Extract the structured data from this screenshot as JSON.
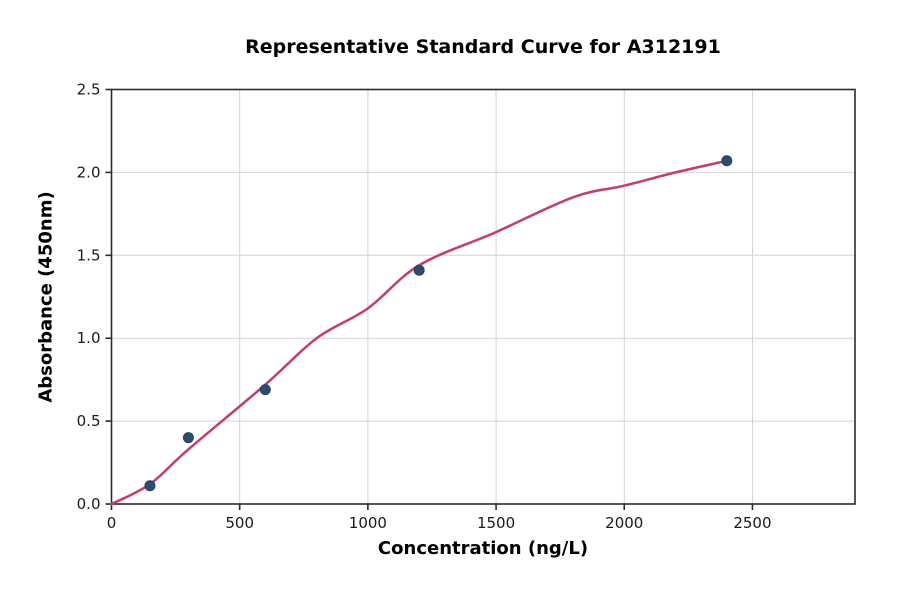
{
  "chart_data": {
    "type": "scatter",
    "title": "Representative Standard Curve for A312191",
    "xlabel": "Concentration (ng/L)",
    "ylabel": "Absorbance (450nm)",
    "xlim": [
      0,
      2900
    ],
    "ylim": [
      0,
      2.5
    ],
    "grid": true,
    "legend_position": "none",
    "x_ticks": [
      0,
      500,
      1000,
      1500,
      2000,
      2500
    ],
    "x_tick_labels": [
      "0",
      "500",
      "1000",
      "1500",
      "2000",
      "2500"
    ],
    "y_ticks": [
      0.0,
      0.5,
      1.0,
      1.5,
      2.0,
      2.5
    ],
    "y_tick_labels": [
      "0.0",
      "0.5",
      "1.0",
      "1.5",
      "2.0",
      "2.5"
    ],
    "points": [
      {
        "x": 150,
        "y": 0.11
      },
      {
        "x": 300,
        "y": 0.4
      },
      {
        "x": 600,
        "y": 0.69
      },
      {
        "x": 1200,
        "y": 1.41
      },
      {
        "x": 2400,
        "y": 2.07
      }
    ],
    "fit_curve_points": [
      {
        "x": 0,
        "y": 0.0
      },
      {
        "x": 150,
        "y": 0.12
      },
      {
        "x": 300,
        "y": 0.33
      },
      {
        "x": 600,
        "y": 0.72
      },
      {
        "x": 800,
        "y": 1.0
      },
      {
        "x": 1000,
        "y": 1.18
      },
      {
        "x": 1200,
        "y": 1.44
      },
      {
        "x": 1500,
        "y": 1.64
      },
      {
        "x": 1800,
        "y": 1.85
      },
      {
        "x": 2000,
        "y": 1.92
      },
      {
        "x": 2200,
        "y": 2.0
      },
      {
        "x": 2400,
        "y": 2.07
      }
    ],
    "colors": {
      "curve": "#c13e6f",
      "marker_fill": "#2e4d6e",
      "marker_edge": "#23405e",
      "grid": "#d4d4d4",
      "spine": "#2b2b2b",
      "tick": "#2b2b2b",
      "text": "#000000",
      "background": "#ffffff"
    }
  }
}
